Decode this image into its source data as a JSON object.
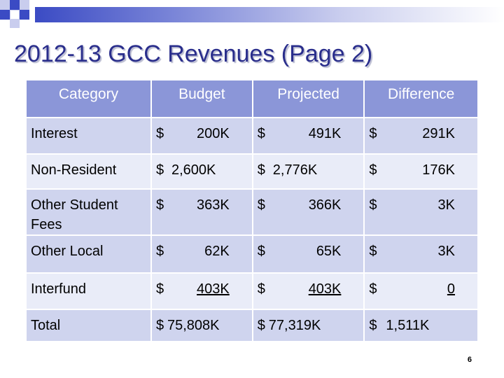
{
  "slide": {
    "title": "2012-13 GCC Revenues (Page 2)",
    "page_number": "6"
  },
  "table": {
    "headers": [
      "Category",
      "Budget",
      "Projected",
      "Difference"
    ],
    "rows": [
      {
        "category": "Interest",
        "budget": "200K",
        "projected": "491K",
        "difference": "291K"
      },
      {
        "category": "Non-Resident",
        "budget": "2,600K",
        "projected": "2,776K",
        "difference": "176K"
      },
      {
        "category": "Other Student Fees",
        "budget": "363K",
        "projected": "366K",
        "difference": "3K"
      },
      {
        "category": "Other Local",
        "budget": "62K",
        "projected": "65K",
        "difference": "3K"
      },
      {
        "category": "Interfund",
        "budget": "403K",
        "projected": "403K",
        "difference": "0"
      },
      {
        "category": "Total",
        "budget": "75,808K",
        "projected": "77,319K",
        "difference": "1,511K"
      }
    ],
    "currency_symbol": "$"
  },
  "colors": {
    "header_bg": "#8b96d8",
    "row_dark": "#cfd4ee",
    "row_light": "#e9ecf8",
    "title": "#2a2e8c"
  }
}
